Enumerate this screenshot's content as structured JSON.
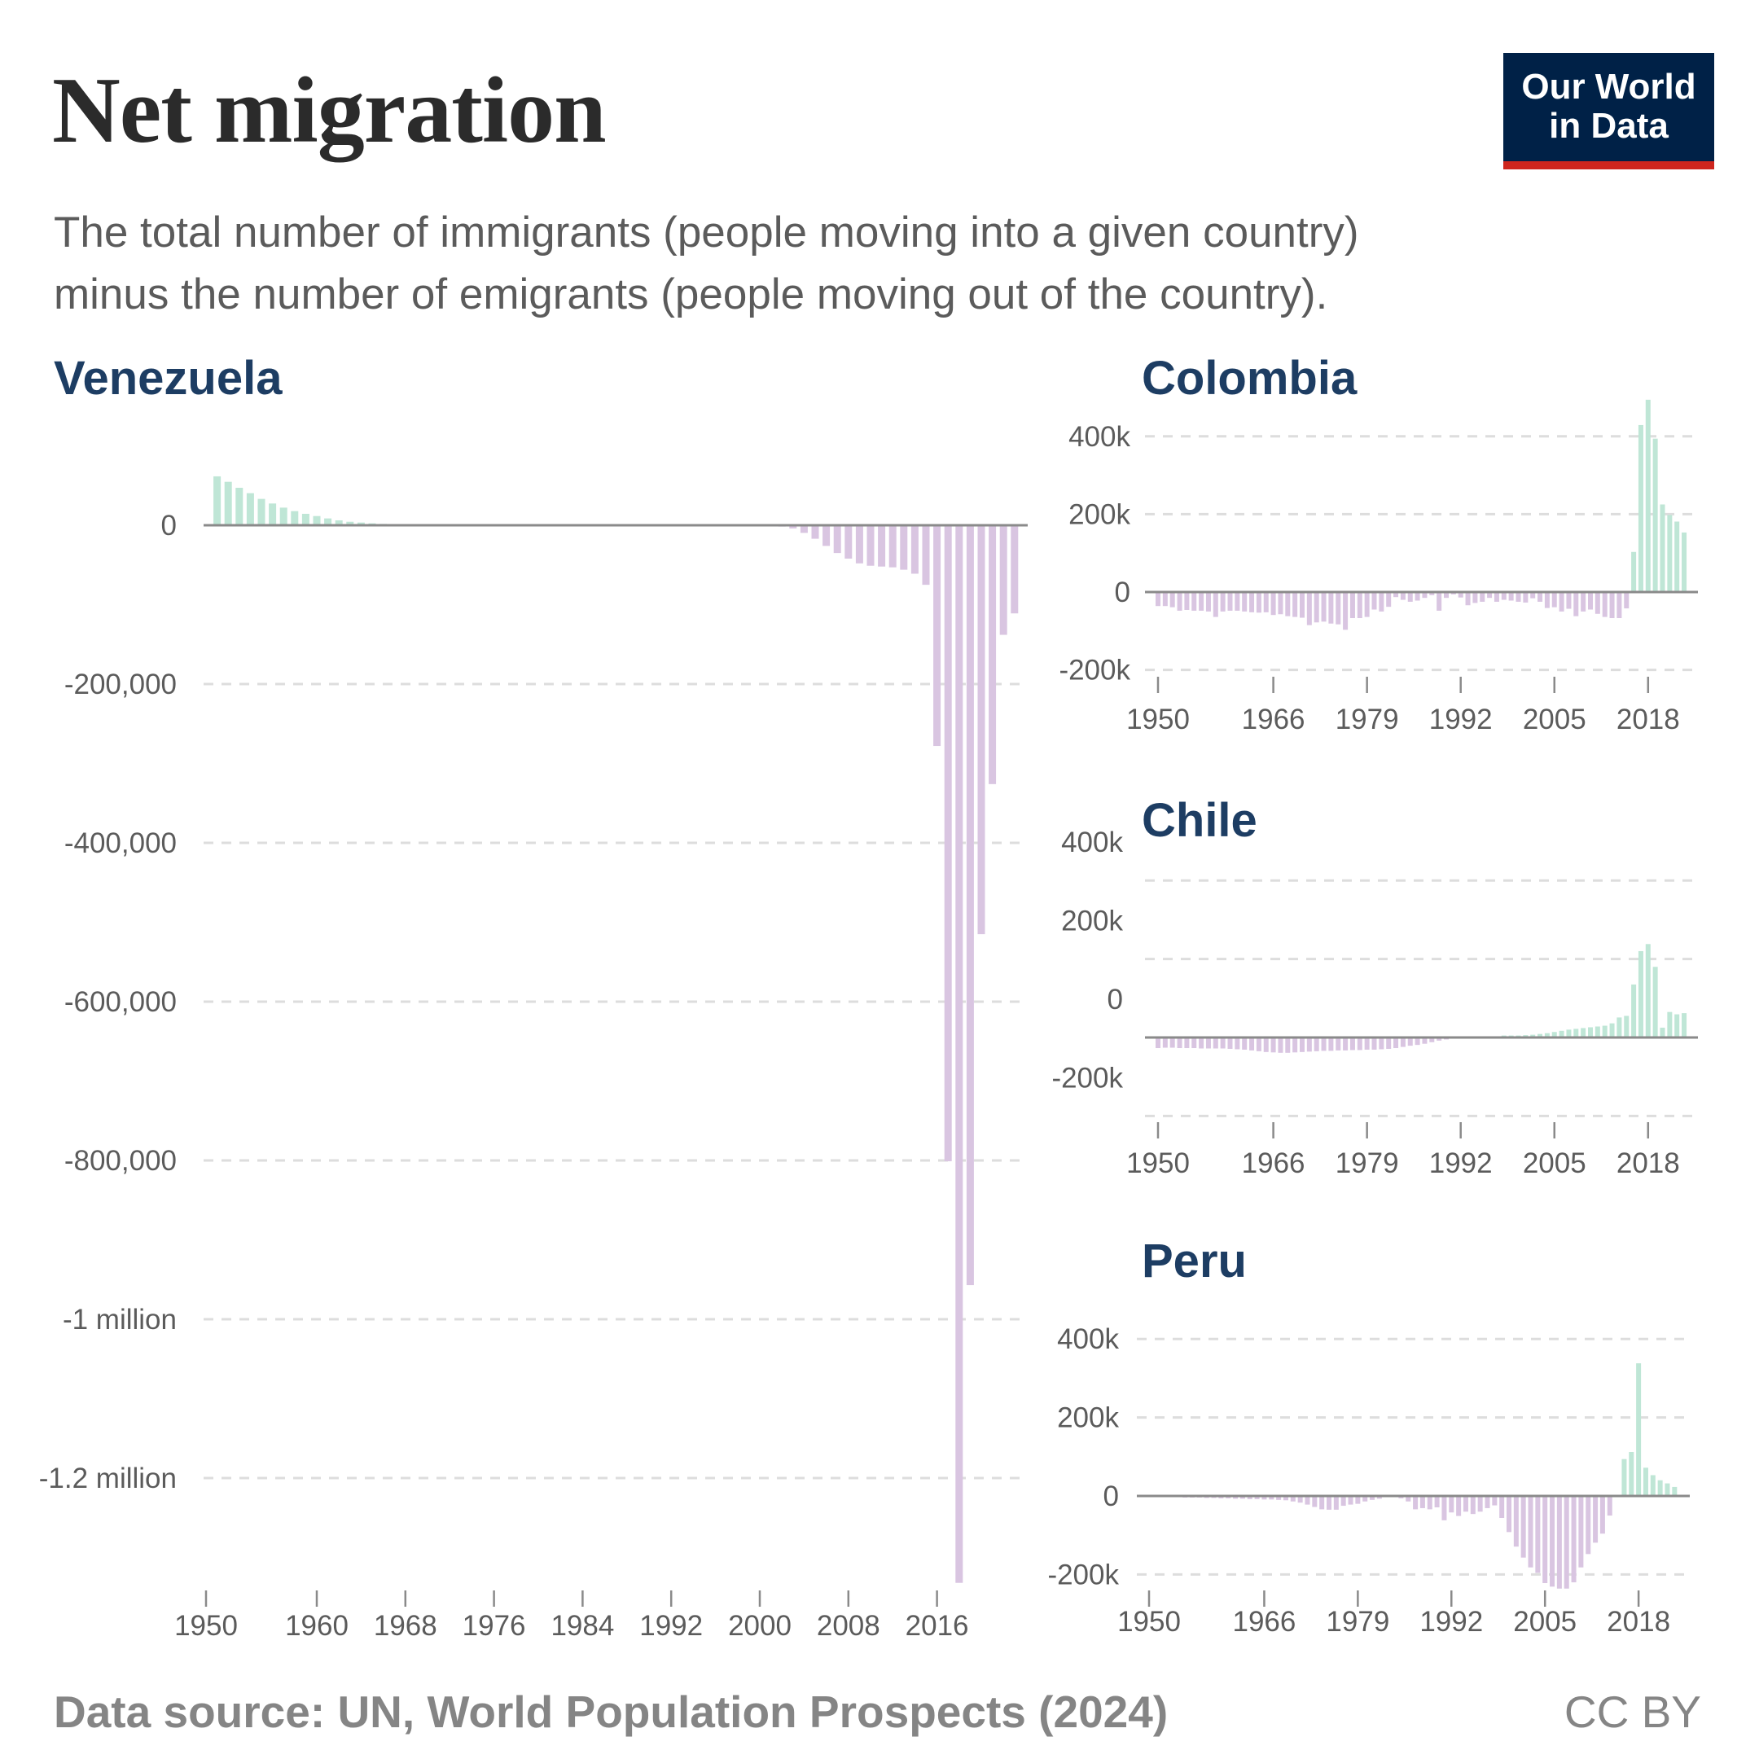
{
  "header": {
    "title": "Net migration",
    "subtitle_line1": "The total number of immigrants (people moving into a given country)",
    "subtitle_line2": "minus the number of emigrants (people moving out of the country).",
    "logo_line1": "Our World",
    "logo_line2": "in Data"
  },
  "footer": {
    "source": "Data source: UN, World Population Prospects (2024)",
    "license": "CC BY"
  },
  "colors": {
    "positive": "#bfe6d6",
    "negative": "#d9c5e1",
    "zero_line": "#8a8a8a",
    "grid": "#dddddd",
    "title": "#1d3d63",
    "logo_bg": "#002147",
    "logo_accent": "#ce261e"
  },
  "chart_data": [
    {
      "type": "bar",
      "title": "Venezuela",
      "x_start": 1950,
      "x_end": 2023,
      "xticks": [
        1950,
        1960,
        1968,
        1976,
        1984,
        1992,
        2000,
        2008,
        2016
      ],
      "yticks": [
        0,
        -200000,
        -400000,
        -600000,
        -800000,
        -1000000,
        -1200000
      ],
      "ytick_labels": [
        "0",
        "-200,000",
        "-400,000",
        "-600,000",
        "-800,000",
        "-1 million",
        "-1.2 million"
      ],
      "ylim": [
        70000,
        -1332000
      ],
      "grid": true,
      "values": [
        0,
        61600,
        54700,
        47200,
        40400,
        33200,
        27400,
        22200,
        17800,
        14400,
        11600,
        8600,
        6200,
        4400,
        3400,
        2400,
        1700,
        1000,
        500,
        300,
        200,
        100,
        0,
        0,
        0,
        0,
        0,
        0,
        0,
        0,
        0,
        0,
        0,
        0,
        0,
        0,
        0,
        0,
        0,
        0,
        0,
        0,
        0,
        -200,
        -300,
        -500,
        -600,
        -500,
        -700,
        -800,
        -1000,
        -1200,
        -1700,
        -4000,
        -9600,
        -17000,
        -26000,
        -35000,
        -42000,
        -48000,
        -51000,
        -52000,
        -53000,
        -56000,
        -61000,
        -75000,
        -278000,
        -801000,
        -1332000,
        -957000,
        -515000,
        -326000,
        -138000,
        -111000
      ]
    },
    {
      "type": "bar",
      "title": "Colombia",
      "x_start": 1950,
      "x_end": 2023,
      "xticks": [
        1950,
        1966,
        1979,
        1992,
        2005,
        2018
      ],
      "yticks": [
        400000,
        200000,
        0,
        -200000
      ],
      "ytick_labels": [
        "400k",
        "200k",
        "0",
        "-200k"
      ],
      "ylim": [
        520000,
        -220000
      ],
      "grid": true,
      "values": [
        -36000,
        -36000,
        -39000,
        -48000,
        -46000,
        -48000,
        -48000,
        -50000,
        -64000,
        -50000,
        -48000,
        -48000,
        -50000,
        -52000,
        -53000,
        -52000,
        -59000,
        -57000,
        -62000,
        -64000,
        -66000,
        -85000,
        -78000,
        -76000,
        -81000,
        -83000,
        -97000,
        -67000,
        -67000,
        -64000,
        -45000,
        -50000,
        -38000,
        -13000,
        -20000,
        -25000,
        -22000,
        -15000,
        -8000,
        -48000,
        -15000,
        -6000,
        -14000,
        -34000,
        -28000,
        -25000,
        -15000,
        -25000,
        -20000,
        -22000,
        -25000,
        -27000,
        -16000,
        -25000,
        -41000,
        -39000,
        -50000,
        -43000,
        -62000,
        -50000,
        -45000,
        -56000,
        -64000,
        -67000,
        -67000,
        -42000,
        103000,
        429000,
        494000,
        394000,
        225000,
        198000,
        181000,
        153000
      ]
    },
    {
      "type": "bar",
      "title": "Chile",
      "x_start": 1950,
      "x_end": 2023,
      "xticks": [
        1950,
        1966,
        1979,
        1992,
        2005,
        2018
      ],
      "yticks": [
        400000,
        200000,
        0,
        -200000
      ],
      "ytick_labels": [
        "400k",
        "200k",
        "0",
        "-200k"
      ],
      "ylim": [
        400000,
        -200000
      ],
      "grid": true,
      "values": [
        -27000,
        -26000,
        -26000,
        -27000,
        -27000,
        -27000,
        -28000,
        -28000,
        -28000,
        -28000,
        -29000,
        -30000,
        -31000,
        -33000,
        -35000,
        -37000,
        -38000,
        -39000,
        -39000,
        -38000,
        -37000,
        -36000,
        -35000,
        -34000,
        -34000,
        -33000,
        -33000,
        -32000,
        -32000,
        -31000,
        -31000,
        -30000,
        -29000,
        -27000,
        -24000,
        -21000,
        -19000,
        -16000,
        -12000,
        -8000,
        -5000,
        -3000,
        -1000,
        0,
        1000,
        2000,
        2000,
        3000,
        5000,
        5000,
        5000,
        6000,
        7000,
        9000,
        11000,
        14000,
        17000,
        20000,
        22000,
        24000,
        26000,
        28000,
        30000,
        36000,
        51000,
        55000,
        135000,
        220000,
        238000,
        180000,
        25000,
        65000,
        59000,
        62000
      ]
    },
    {
      "type": "bar",
      "title": "Peru",
      "x_start": 1950,
      "x_end": 2023,
      "xticks": [
        1950,
        1966,
        1979,
        1992,
        2005,
        2018
      ],
      "yticks": [
        400000,
        200000,
        0,
        -200000
      ],
      "ytick_labels": [
        "400k",
        "200k",
        "0",
        "-200k"
      ],
      "ylim": [
        400000,
        -240000
      ],
      "grid": true,
      "values": [
        -1000,
        -2000,
        -2000,
        -3000,
        -3000,
        -4000,
        -4000,
        -4000,
        -5000,
        -5000,
        -6000,
        -6000,
        -7000,
        -7000,
        -8000,
        -8000,
        -9000,
        -9000,
        -10000,
        -11000,
        -14000,
        -17000,
        -22000,
        -28000,
        -34000,
        -35000,
        -35000,
        -25000,
        -22000,
        -20000,
        -14000,
        -10000,
        -7000,
        -1000,
        -3000,
        -6000,
        -14000,
        -34000,
        -31000,
        -34000,
        -29000,
        -62000,
        -42000,
        -51000,
        -40000,
        -46000,
        -40000,
        -31000,
        -24000,
        -56000,
        -92000,
        -129000,
        -157000,
        -182000,
        -196000,
        -222000,
        -231000,
        -236000,
        -236000,
        -220000,
        -182000,
        -148000,
        -119000,
        -96000,
        -50000,
        -3000,
        94000,
        112000,
        338000,
        72000,
        53000,
        40000,
        32000,
        23000
      ]
    }
  ]
}
